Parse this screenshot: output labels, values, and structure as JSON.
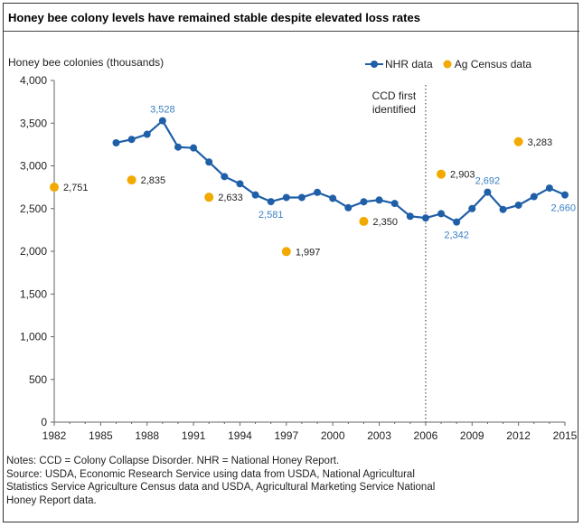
{
  "header": {
    "title": "Honey bee colony levels have remained stable despite elevated loss rates",
    "y_axis_label": "Honey bee colonies (thousands)"
  },
  "legend": {
    "nhr": "NHR data",
    "census": "Ag Census data"
  },
  "notes": {
    "line1": "Notes: CCD = Colony Collapse Disorder. NHR = National Honey Report.",
    "line2": "Source: USDA, Economic Research Service using data from USDA, National Agricultural",
    "line3": "Statistics Service Agriculture Census data and USDA, Agricultural Marketing Service National",
    "line4": "Honey Report data."
  },
  "colors": {
    "nhr": "#1f5fa8",
    "nhr_label": "#3a7fc4",
    "census": "#f2a900",
    "axis": "#666666",
    "grid": "#aaaaaa"
  },
  "chart_data": {
    "type": "line",
    "title": "Honey bee colony levels have remained stable despite elevated loss rates",
    "ylabel": "Honey bee colonies (thousands)",
    "xlabel": "",
    "xlim": [
      1982,
      2015
    ],
    "ylim": [
      0,
      4000
    ],
    "xticks": [
      1982,
      1985,
      1988,
      1991,
      1994,
      1997,
      2000,
      2003,
      2006,
      2009,
      2012,
      2015
    ],
    "yticks": [
      0,
      500,
      1000,
      1500,
      2000,
      2500,
      3000,
      3500,
      4000
    ],
    "grid": false,
    "legend_position": "top-right",
    "series": [
      {
        "name": "NHR data",
        "kind": "line",
        "x": [
          1986,
          1987,
          1988,
          1989,
          1990,
          1991,
          1992,
          1993,
          1994,
          1995,
          1996,
          1997,
          1998,
          1999,
          2000,
          2001,
          2002,
          2003,
          2004,
          2005,
          2006,
          2007,
          2008,
          2009,
          2010,
          2011,
          2012,
          2013,
          2014,
          2015
        ],
        "y": [
          3270,
          3310,
          3370,
          3528,
          3220,
          3210,
          3045,
          2875,
          2790,
          2660,
          2581,
          2630,
          2630,
          2690,
          2620,
          2510,
          2580,
          2600,
          2560,
          2410,
          2390,
          2440,
          2342,
          2500,
          2692,
          2490,
          2540,
          2640,
          2740,
          2660
        ],
        "labels": [
          {
            "x": 1989,
            "text": "3,528",
            "pos": "above"
          },
          {
            "x": 1996,
            "text": "2,581",
            "pos": "below"
          },
          {
            "x": 2008,
            "text": "2,342",
            "pos": "below"
          },
          {
            "x": 2010,
            "text": "2,692",
            "pos": "above"
          },
          {
            "x": 2015,
            "text": "2,660",
            "pos": "below"
          }
        ]
      },
      {
        "name": "Ag Census data",
        "kind": "scatter",
        "x": [
          1982,
          1987,
          1992,
          1997,
          2002,
          2007,
          2012
        ],
        "y": [
          2751,
          2835,
          2633,
          1997,
          2350,
          2903,
          3283
        ],
        "labels": [
          "2,751",
          "2,835",
          "2,633",
          "1,997",
          "2,350",
          "2,903",
          "3,283"
        ]
      }
    ],
    "annotations": [
      {
        "x": 2006,
        "lines": [
          "CCD first",
          "identified"
        ],
        "style": "dotted-vertical"
      }
    ]
  }
}
